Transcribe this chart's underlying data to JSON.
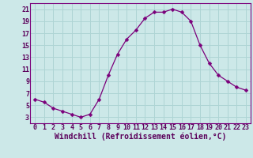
{
  "x": [
    0,
    1,
    2,
    3,
    4,
    5,
    6,
    7,
    8,
    9,
    10,
    11,
    12,
    13,
    14,
    15,
    16,
    17,
    18,
    19,
    20,
    21,
    22,
    23
  ],
  "y": [
    6.0,
    5.5,
    4.5,
    4.0,
    3.5,
    3.0,
    3.5,
    6.0,
    10.0,
    13.5,
    16.0,
    17.5,
    19.5,
    20.5,
    20.5,
    21.0,
    20.5,
    19.0,
    15.0,
    12.0,
    10.0,
    9.0,
    8.0,
    7.5
  ],
  "line_color": "#7B007B",
  "marker": "D",
  "marker_size": 2.5,
  "bg_color": "#cce8e8",
  "grid_color": "#aed4d4",
  "xlabel": "Windchill (Refroidissement éolien,°C)",
  "xlabel_fontsize": 7,
  "ylim": [
    2.0,
    22.0
  ],
  "xlim": [
    -0.5,
    23.5
  ],
  "yticks": [
    3,
    5,
    7,
    9,
    11,
    13,
    15,
    17,
    19,
    21
  ],
  "xtick_labels": [
    "0",
    "1",
    "2",
    "3",
    "4",
    "5",
    "6",
    "7",
    "8",
    "9",
    "10",
    "11",
    "12",
    "13",
    "14",
    "15",
    "16",
    "17",
    "18",
    "19",
    "20",
    "21",
    "22",
    "23"
  ],
  "tick_fontsize": 6,
  "spine_color": "#7B007B",
  "label_color": "#5B005B"
}
